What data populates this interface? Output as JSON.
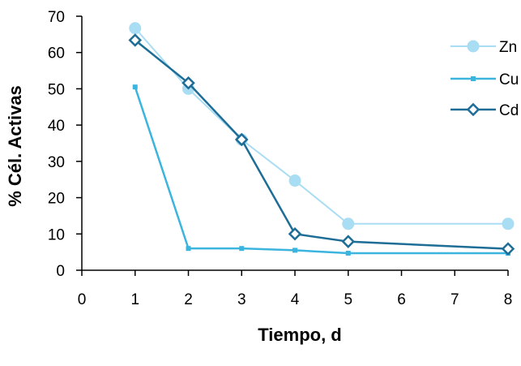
{
  "chart_data": {
    "type": "line",
    "title": "",
    "xlabel": "Tiempo, d",
    "ylabel": "% Cél. Activas",
    "xlim": [
      0,
      8
    ],
    "ylim": [
      0,
      70
    ],
    "x_ticks": [
      "0",
      "1",
      "2",
      "3",
      "4",
      "5",
      "6",
      "7",
      "8"
    ],
    "y_ticks": [
      "0",
      "10",
      "20",
      "30",
      "40",
      "50",
      "60",
      "70"
    ],
    "grid": false,
    "legend_position": "right",
    "series": [
      {
        "name": "Zn",
        "color": "#A9DDF3",
        "marker": "circle",
        "x": [
          1,
          2,
          3,
          4,
          5,
          8
        ],
        "y": [
          66.7,
          50,
          36,
          24.7,
          12.8,
          12.8
        ]
      },
      {
        "name": "Cu",
        "color": "#3BB4DE",
        "marker": "square",
        "x": [
          1,
          2,
          3,
          4,
          5,
          8
        ],
        "y": [
          50.5,
          6,
          6,
          5.5,
          4.7,
          4.7
        ]
      },
      {
        "name": "Cd",
        "color": "#1D6D96",
        "marker": "diamond",
        "x": [
          1,
          2,
          3,
          4,
          5,
          8
        ],
        "y": [
          63.4,
          51.6,
          36,
          10,
          7.9,
          5.9
        ]
      }
    ]
  }
}
